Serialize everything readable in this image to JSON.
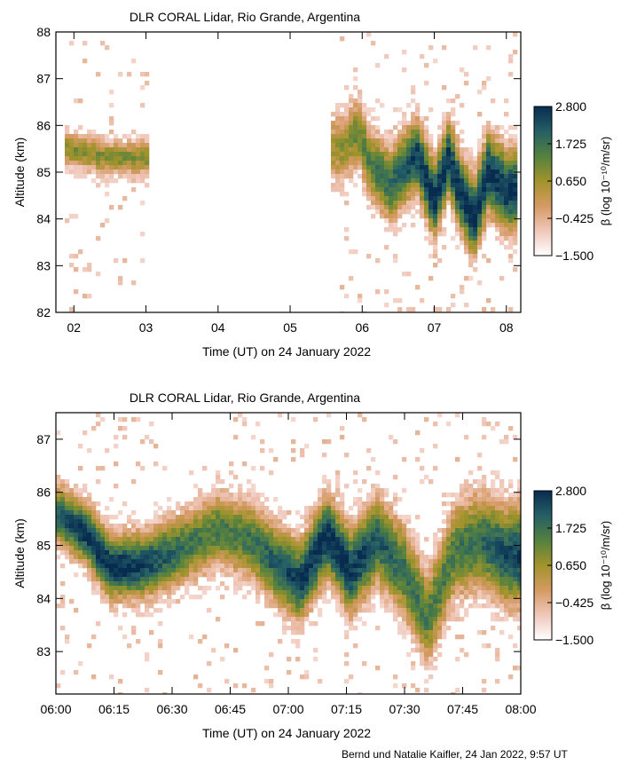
{
  "chart_data": [
    {
      "type": "heatmap",
      "title": "DLR CORAL Lidar, Rio Grande, Argentina",
      "xlabel": "Time (UT) on 24 January 2022",
      "ylabel": "Altitude (km)",
      "xlim": [
        1.75,
        8.2
      ],
      "ylim": [
        82,
        88
      ],
      "x_ticks": [
        2,
        3,
        4,
        5,
        6,
        7,
        8
      ],
      "x_tick_labels": [
        "02",
        "03",
        "04",
        "05",
        "06",
        "07",
        "08"
      ],
      "y_ticks": [
        82,
        83,
        84,
        85,
        86,
        87,
        88
      ],
      "y_tick_labels": [
        "82",
        "83",
        "84",
        "85",
        "86",
        "87",
        "88"
      ],
      "data_gap": [
        3.05,
        5.55
      ],
      "layer_centre_km": [
        {
          "time": 1.9,
          "alt": 85.5
        },
        {
          "time": 2.5,
          "alt": 85.3
        },
        {
          "time": 3.0,
          "alt": 85.3
        },
        {
          "time": 5.75,
          "alt": 85.5
        },
        {
          "time": 5.95,
          "alt": 85.9
        },
        {
          "time": 6.1,
          "alt": 85.2
        },
        {
          "time": 6.4,
          "alt": 84.7
        },
        {
          "time": 6.75,
          "alt": 85.4
        },
        {
          "time": 7.0,
          "alt": 84.4
        },
        {
          "time": 7.2,
          "alt": 85.3
        },
        {
          "time": 7.35,
          "alt": 84.6
        },
        {
          "time": 7.55,
          "alt": 84.0
        },
        {
          "time": 7.75,
          "alt": 85.0
        },
        {
          "time": 8.0,
          "alt": 84.6
        }
      ],
      "colorbar": {
        "label": "β (log 10⁻¹⁰/m/sr)",
        "ticks": [
          2.8,
          1.725,
          0.65,
          -0.425,
          -1.5
        ],
        "tick_labels": [
          "2.800",
          "1.725",
          "0.650",
          "−0.425",
          "−1.500"
        ],
        "colors": [
          "#ffffff",
          "#f0c7ba",
          "#d59a63",
          "#a1932b",
          "#55813f",
          "#255f66",
          "#082c50"
        ]
      }
    },
    {
      "type": "heatmap",
      "title": "DLR CORAL Lidar, Rio Grande, Argentina",
      "xlabel": "Time (UT) on 24 January 2022",
      "ylabel": "Altitude (km)",
      "xlim": [
        0,
        120
      ],
      "ylim": [
        82.2,
        87.5
      ],
      "x_ticks": [
        0,
        15,
        30,
        45,
        60,
        75,
        90,
        105,
        120
      ],
      "x_tick_labels": [
        "06:00",
        "06:15",
        "06:30",
        "06:45",
        "07:00",
        "07:15",
        "07:30",
        "07:45",
        "08:00"
      ],
      "y_ticks": [
        83,
        84,
        85,
        86,
        87
      ],
      "y_tick_labels": [
        "83",
        "84",
        "85",
        "86",
        "87"
      ],
      "layer_centre_km": [
        {
          "time": 0,
          "alt": 85.6
        },
        {
          "time": 8,
          "alt": 85.2
        },
        {
          "time": 14,
          "alt": 84.6
        },
        {
          "time": 22,
          "alt": 84.6
        },
        {
          "time": 32,
          "alt": 84.9
        },
        {
          "time": 42,
          "alt": 85.3
        },
        {
          "time": 50,
          "alt": 85.1
        },
        {
          "time": 56,
          "alt": 84.7
        },
        {
          "time": 63,
          "alt": 84.3
        },
        {
          "time": 70,
          "alt": 85.2
        },
        {
          "time": 76,
          "alt": 84.5
        },
        {
          "time": 83,
          "alt": 85.1
        },
        {
          "time": 90,
          "alt": 84.5
        },
        {
          "time": 96,
          "alt": 83.6
        },
        {
          "time": 103,
          "alt": 84.9
        },
        {
          "time": 110,
          "alt": 85.1
        },
        {
          "time": 116,
          "alt": 84.8
        },
        {
          "time": 120,
          "alt": 84.8
        }
      ],
      "colorbar": {
        "label": "β (log 10⁻¹⁰/m/sr)",
        "ticks": [
          2.8,
          1.725,
          0.65,
          -0.425,
          -1.5
        ],
        "tick_labels": [
          "2.800",
          "1.725",
          "0.650",
          "−0.425",
          "−1.500"
        ],
        "colors": [
          "#ffffff",
          "#f0c7ba",
          "#d59a63",
          "#a1932b",
          "#55813f",
          "#255f66",
          "#082c50"
        ]
      }
    }
  ],
  "footer": {
    "credit": "Bernd und Natalie Kaifler, 24 Jan 2022, 9:57 UT"
  }
}
